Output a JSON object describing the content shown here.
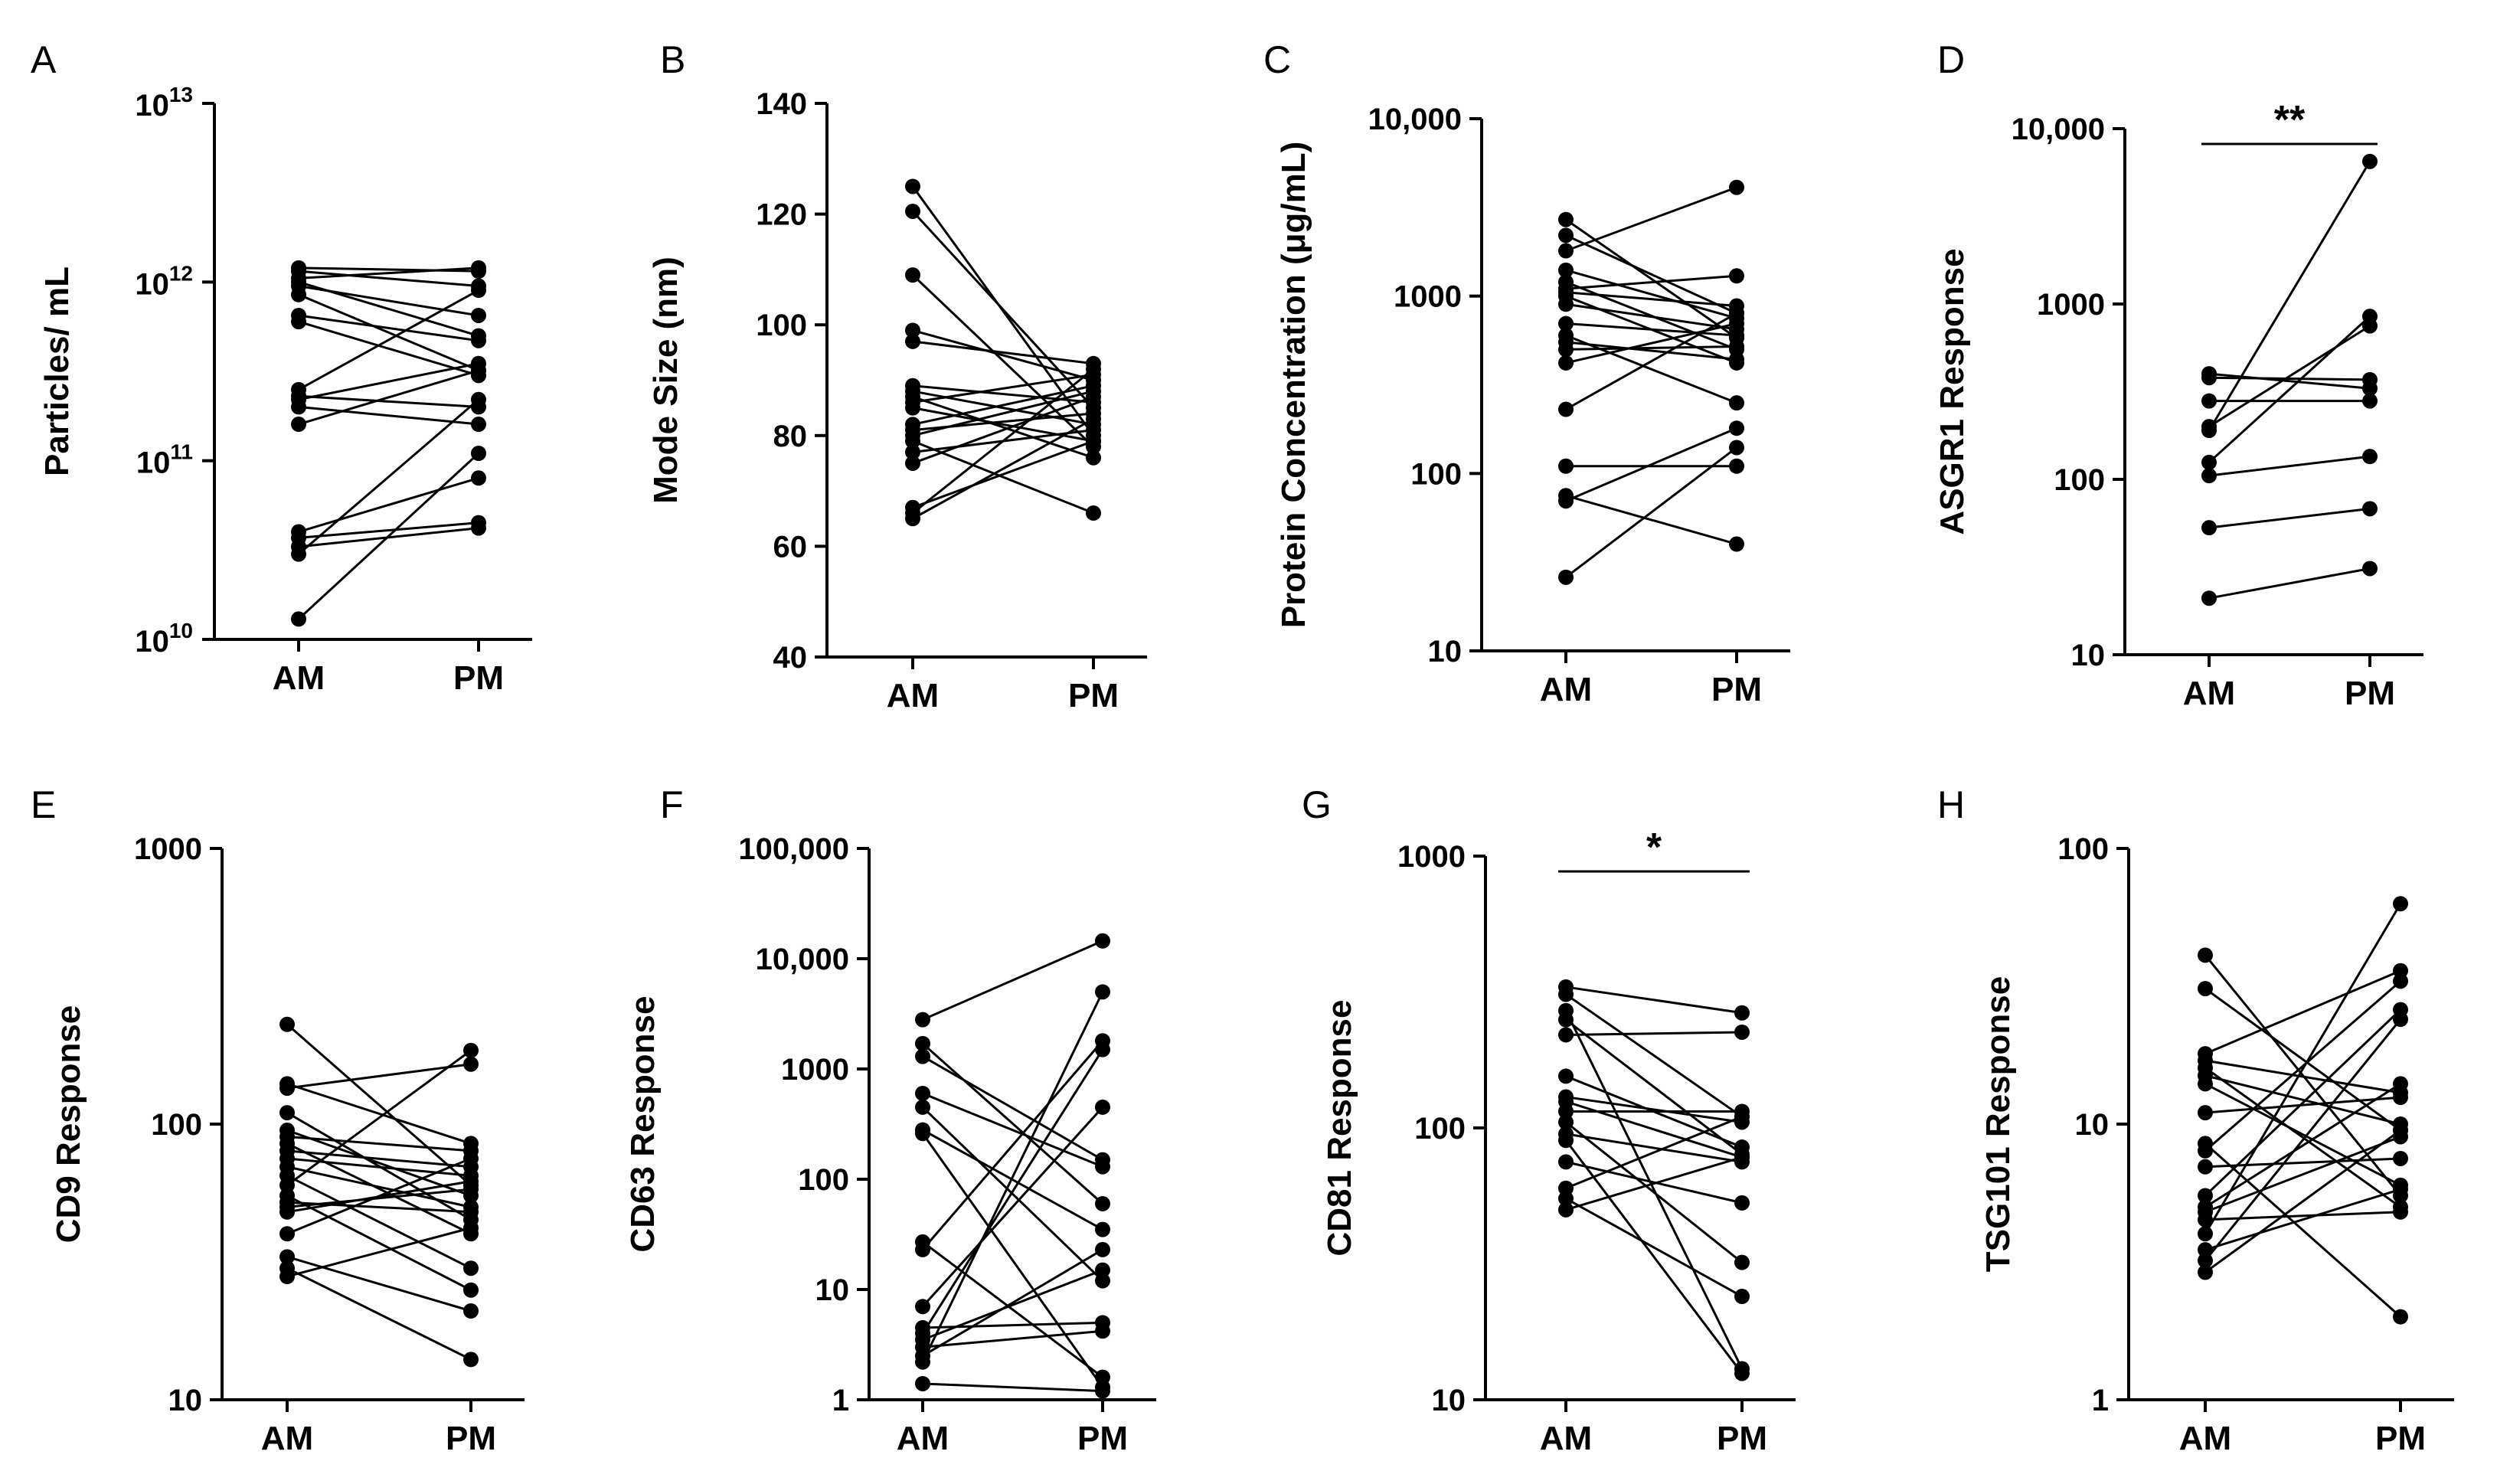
{
  "chart_data": [
    {
      "panel": "A",
      "type": "scatter",
      "ylabel": "Particles/ mL",
      "yscale": "log",
      "ylim": [
        10000000000.0,
        10000000000000.0
      ],
      "yticks": [
        10000000000.0,
        100000000000.0,
        1000000000000.0,
        10000000000000.0
      ],
      "ytick_labels": [
        "10",
        "10",
        "10",
        "10"
      ],
      "ytick_exponents": [
        "10",
        "11",
        "12",
        "13"
      ],
      "categories": [
        "AM",
        "PM"
      ],
      "significance": "",
      "pairs": [
        [
          1200000000000.0,
          1150000000000.0
        ],
        [
          1150000000000.0,
          950000000000.0
        ],
        [
          1050000000000.0,
          1200000000000.0
        ],
        [
          1000000000000.0,
          500000000000.0
        ],
        [
          950000000000.0,
          650000000000.0
        ],
        [
          850000000000.0,
          320000000000.0
        ],
        [
          650000000000.0,
          470000000000.0
        ],
        [
          600000000000.0,
          300000000000.0
        ],
        [
          250000000000.0,
          900000000000.0
        ],
        [
          230000000000.0,
          200000000000.0
        ],
        [
          220000000000.0,
          350000000000.0
        ],
        [
          200000000000.0,
          160000000000.0
        ],
        [
          160000000000.0,
          320000000000.0
        ],
        [
          40000000000.0,
          80000000000.0
        ],
        [
          37000000000.0,
          45000000000.0
        ],
        [
          33000000000.0,
          42000000000.0
        ],
        [
          30000000000.0,
          220000000000.0
        ],
        [
          13000000000.0,
          110000000000.0
        ]
      ]
    },
    {
      "panel": "B",
      "type": "scatter",
      "ylabel": "Mode Size (nm)",
      "yscale": "linear",
      "ylim": [
        40,
        140
      ],
      "yticks": [
        40,
        60,
        80,
        100,
        120,
        140
      ],
      "ytick_labels": [
        "40",
        "60",
        "80",
        "100",
        "120",
        "140"
      ],
      "categories": [
        "AM",
        "PM"
      ],
      "significance": "",
      "pairs": [
        [
          125,
          80
        ],
        [
          120.5,
          85
        ],
        [
          109,
          78
        ],
        [
          99,
          90
        ],
        [
          97,
          93
        ],
        [
          89,
          86
        ],
        [
          88,
          82
        ],
        [
          87,
          76
        ],
        [
          86,
          91
        ],
        [
          85,
          79
        ],
        [
          82,
          89
        ],
        [
          81,
          84
        ],
        [
          80,
          88
        ],
        [
          79,
          66
        ],
        [
          77,
          81
        ],
        [
          75,
          87
        ],
        [
          67,
          79
        ],
        [
          66,
          92
        ],
        [
          65,
          83
        ]
      ]
    },
    {
      "panel": "C",
      "type": "scatter",
      "ylabel": "Protein Concentration (μg/mL)",
      "yscale": "log",
      "ylim": [
        10,
        10000
      ],
      "yticks": [
        10,
        100,
        1000,
        10000
      ],
      "ytick_labels": [
        "10",
        "100",
        "1000",
        "10,000"
      ],
      "categories": [
        "AM",
        "PM"
      ],
      "significance": "",
      "pairs": [
        [
          2700,
          580
        ],
        [
          2200,
          800
        ],
        [
          1800,
          4100
        ],
        [
          1400,
          750
        ],
        [
          1200,
          500
        ],
        [
          1100,
          1300
        ],
        [
          1050,
          880
        ],
        [
          1000,
          420
        ],
        [
          900,
          650
        ],
        [
          700,
          600
        ],
        [
          600,
          250
        ],
        [
          550,
          440
        ],
        [
          500,
          520
        ],
        [
          420,
          700
        ],
        [
          230,
          800
        ],
        [
          110,
          110
        ],
        [
          75,
          40
        ],
        [
          70,
          180
        ],
        [
          26,
          140
        ]
      ]
    },
    {
      "panel": "D",
      "type": "scatter",
      "ylabel": "ASGR1 Response",
      "yscale": "log",
      "ylim": [
        10,
        10000
      ],
      "yticks": [
        10,
        100,
        1000,
        10000
      ],
      "ytick_labels": [
        "10",
        "100",
        "1000",
        "10,000"
      ],
      "categories": [
        "AM",
        "PM"
      ],
      "significance": "**",
      "pairs": [
        [
          400,
          330
        ],
        [
          380,
          370
        ],
        [
          280,
          280
        ],
        [
          200,
          750
        ],
        [
          190,
          6500
        ],
        [
          125,
          850
        ],
        [
          105,
          135
        ],
        [
          53,
          68
        ],
        [
          21,
          31
        ]
      ]
    },
    {
      "panel": "E",
      "type": "scatter",
      "ylabel": "CD9 Response",
      "yscale": "log",
      "ylim": [
        10,
        1000
      ],
      "yticks": [
        10,
        100,
        1000
      ],
      "ytick_labels": [
        "10",
        "100",
        "1000"
      ],
      "categories": [
        "AM",
        "PM"
      ],
      "significance": "",
      "pairs": [
        [
          230,
          60
        ],
        [
          140,
          85
        ],
        [
          135,
          165
        ],
        [
          110,
          45
        ],
        [
          95,
          55
        ],
        [
          90,
          80
        ],
        [
          85,
          40
        ],
        [
          80,
          70
        ],
        [
          75,
          65
        ],
        [
          70,
          50
        ],
        [
          65,
          30
        ],
        [
          60,
          185
        ],
        [
          55,
          25
        ],
        [
          52,
          48
        ],
        [
          50,
          58
        ],
        [
          48,
          62
        ],
        [
          40,
          75
        ],
        [
          33,
          21
        ],
        [
          30,
          14
        ],
        [
          28,
          42
        ]
      ]
    },
    {
      "panel": "F",
      "type": "scatter",
      "ylabel": "CD63 Response",
      "yscale": "log",
      "ylim": [
        1,
        100000
      ],
      "yticks": [
        1,
        10,
        100,
        1000,
        10000,
        100000
      ],
      "ytick_labels": [
        "1",
        "10",
        "100",
        "1000",
        "10,000",
        "100,000"
      ],
      "categories": [
        "AM",
        "PM"
      ],
      "significance": "",
      "pairs": [
        [
          2800,
          14500
        ],
        [
          1700,
          60
        ],
        [
          1300,
          150
        ],
        [
          600,
          130
        ],
        [
          450,
          12
        ],
        [
          280,
          35
        ],
        [
          260,
          1.3
        ],
        [
          27,
          1.6
        ],
        [
          23,
          1800
        ],
        [
          7,
          450
        ],
        [
          4.5,
          5
        ],
        [
          4,
          1500
        ],
        [
          3.5,
          15
        ],
        [
          3,
          4.2
        ],
        [
          2.5,
          23
        ],
        [
          2.2,
          5000
        ],
        [
          1.4,
          1.2
        ]
      ]
    },
    {
      "panel": "G",
      "type": "scatter",
      "ylabel": "CD81 Response",
      "yscale": "log",
      "ylim": [
        10,
        1000
      ],
      "yticks": [
        10,
        100,
        1000
      ],
      "ytick_labels": [
        "10",
        "100",
        "1000"
      ],
      "categories": [
        "AM",
        "PM"
      ],
      "significance": "*",
      "pairs": [
        [
          330,
          265
        ],
        [
          310,
          110
        ],
        [
          270,
          13
        ],
        [
          250,
          80
        ],
        [
          220,
          225
        ],
        [
          155,
          85
        ],
        [
          130,
          105
        ],
        [
          125,
          78
        ],
        [
          115,
          115
        ],
        [
          105,
          32
        ],
        [
          95,
          75
        ],
        [
          90,
          12.5
        ],
        [
          75,
          53
        ],
        [
          60,
          110
        ],
        [
          55,
          24
        ],
        [
          50,
          78
        ]
      ]
    },
    {
      "panel": "H",
      "type": "scatter",
      "ylabel": "TSG101 Response",
      "yscale": "log",
      "ylim": [
        1,
        100
      ],
      "yticks": [
        1,
        10,
        100
      ],
      "ytick_labels": [
        "1",
        "10",
        "100"
      ],
      "categories": [
        "AM",
        "PM"
      ],
      "significance": "",
      "pairs": [
        [
          41,
          5.5
        ],
        [
          31,
          9.5
        ],
        [
          18,
          36
        ],
        [
          17,
          13
        ],
        [
          16,
          5
        ],
        [
          15,
          10
        ],
        [
          14,
          6
        ],
        [
          11,
          12.5
        ],
        [
          8.5,
          2
        ],
        [
          8,
          33
        ],
        [
          7,
          7.5
        ],
        [
          5.5,
          26
        ],
        [
          5,
          14
        ],
        [
          4.8,
          9
        ],
        [
          4.5,
          4.8
        ],
        [
          4,
          63
        ],
        [
          3.5,
          5.8
        ],
        [
          3.2,
          24
        ],
        [
          2.9,
          9.5
        ]
      ]
    }
  ]
}
